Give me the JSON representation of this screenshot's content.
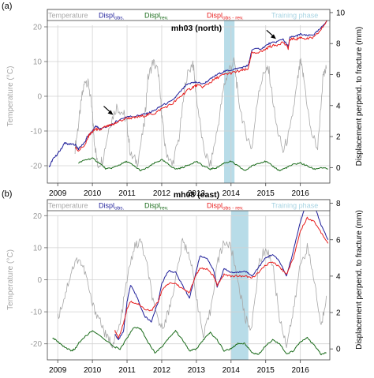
{
  "chart_data": [
    {
      "type": "line",
      "panel_label": "(a)",
      "title": "mh03 (north)",
      "ylabel_left": "Temperature (°C)",
      "ylabel_right": "Displacement perpend. to fracture (mm)",
      "x_ticks": [
        "2009",
        "2010",
        "2011",
        "2012",
        "2013",
        "2014",
        "2015",
        "2016"
      ],
      "xlim": [
        2008.7,
        2016.85
      ],
      "ylim_left": [
        -25,
        25
      ],
      "ylim_right": [
        -1,
        10.2
      ],
      "yticks_left": [
        -20,
        -10,
        0,
        10,
        20
      ],
      "yticks_right": [
        0,
        2,
        4,
        6,
        8,
        10
      ],
      "grid": true,
      "training_phase": [
        2013.8,
        2014.1
      ],
      "arrows": [
        {
          "x": 2010.6,
          "y": 3.4
        },
        {
          "x": 2015.3,
          "y": 8.3
        }
      ],
      "legend": [
        "Temperature",
        "Displ",
        "Displ",
        "Displ",
        "Training phase"
      ],
      "legend_sub": [
        "",
        "obs.",
        "rev.",
        "obs - rev.",
        ""
      ],
      "series": [
        {
          "name": "Temperature",
          "axis": "left",
          "color": "#a8a8a8",
          "x": [
            2009.5,
            2009.6,
            2009.7,
            2009.8,
            2009.9,
            2010.0,
            2010.05,
            2010.15,
            2010.3,
            2010.5,
            2010.7,
            2010.9,
            2011.0,
            2011.1,
            2011.3,
            2011.5,
            2011.6,
            2011.75,
            2011.9,
            2012.0,
            2012.1,
            2012.3,
            2012.5,
            2012.7,
            2012.9,
            2013.0,
            2013.2,
            2013.4,
            2013.6,
            2013.8,
            2013.95,
            2014.1,
            2014.2,
            2014.4,
            2014.6,
            2014.8,
            2015.0,
            2015.1,
            2015.3,
            2015.5,
            2015.7,
            2015.9,
            2016.0,
            2016.1,
            2016.3,
            2016.5,
            2016.65,
            2016.75
          ],
          "y": [
            -15,
            -8,
            0,
            5,
            3,
            -5,
            -12,
            -20,
            -18,
            -8,
            -3,
            -5,
            -8,
            -17,
            -19,
            -8,
            5,
            10,
            7,
            -5,
            -15,
            -20,
            -12,
            5,
            10,
            0,
            -15,
            -20,
            -10,
            3,
            8,
            10,
            0,
            -10,
            -15,
            2,
            8,
            7,
            -8,
            -16,
            -10,
            3,
            10,
            5,
            -10,
            -15,
            5,
            8
          ]
        },
        {
          "name": "Displ obs.",
          "axis": "right",
          "color": "#1f1f9a",
          "x": [
            2008.75,
            2008.85,
            2009.0,
            2009.1,
            2009.2,
            2009.3,
            2009.5,
            2009.6,
            2009.8,
            2009.85,
            2009.95,
            2010.1,
            2010.2,
            2010.35,
            2010.5,
            2010.6,
            2010.7,
            2011.0,
            2011.2,
            2011.4,
            2011.6,
            2011.8,
            2012.0,
            2012.3,
            2012.5,
            2012.7,
            2012.9,
            2013.0,
            2013.2,
            2013.4,
            2013.6,
            2013.8,
            2014.0,
            2014.2,
            2014.4,
            2014.5,
            2014.6,
            2014.9,
            2015.1,
            2015.3,
            2015.5,
            2015.65,
            2015.7,
            2015.9,
            2016.0,
            2016.2,
            2016.4,
            2016.6,
            2016.8
          ],
          "y": [
            0,
            0.5,
            0.9,
            1.2,
            1.6,
            1.5,
            1.5,
            1.2,
            1.7,
            2.0,
            2.2,
            2.7,
            2.5,
            2.6,
            2.7,
            2.8,
            3.0,
            3.3,
            3.3,
            3.4,
            3.5,
            3.7,
            4.0,
            4.3,
            4.8,
            5.3,
            5.5,
            5.5,
            5.4,
            5.7,
            6.0,
            6.2,
            6.3,
            6.4,
            6.5,
            6.6,
            7.6,
            7.7,
            8.0,
            8.1,
            8.3,
            7.8,
            8.4,
            8.5,
            8.6,
            8.5,
            8.6,
            9.0,
            9.6
          ]
        },
        {
          "name": "Displ obs - rev.",
          "axis": "right",
          "color": "#e81e1e",
          "x": [
            2009.5,
            2009.6,
            2009.8,
            2009.9,
            2010.0,
            2010.1,
            2010.2,
            2010.35,
            2010.5,
            2010.6,
            2010.7,
            2011.0,
            2011.2,
            2011.4,
            2011.6,
            2011.8,
            2012.0,
            2012.3,
            2012.5,
            2012.7,
            2012.9,
            2013.0,
            2013.2,
            2013.4,
            2013.6,
            2013.8,
            2014.0,
            2014.2,
            2014.4,
            2014.5,
            2014.6,
            2014.9,
            2015.1,
            2015.3,
            2015.5,
            2015.65,
            2015.7,
            2015.9,
            2016.0,
            2016.2,
            2016.4,
            2016.6,
            2016.8
          ],
          "y": [
            1.3,
            1.1,
            1.5,
            2.1,
            2.3,
            2.5,
            2.4,
            2.6,
            2.7,
            2.8,
            2.9,
            3.2,
            3.2,
            3.3,
            3.4,
            3.5,
            3.8,
            4.1,
            4.5,
            4.9,
            5.2,
            5.3,
            5.2,
            5.5,
            5.8,
            6.0,
            6.1,
            6.2,
            6.3,
            6.4,
            7.4,
            7.5,
            7.8,
            7.9,
            8.1,
            7.7,
            8.3,
            8.3,
            8.4,
            8.3,
            8.4,
            8.9,
            9.6
          ]
        },
        {
          "name": "Displ rev.",
          "axis": "right",
          "color": "#1a6b1a",
          "x": [
            2009.6,
            2009.8,
            2010.0,
            2010.2,
            2010.4,
            2010.6,
            2010.8,
            2011.0,
            2011.2,
            2011.4,
            2011.6,
            2011.8,
            2012.0,
            2012.2,
            2012.4,
            2012.6,
            2012.8,
            2013.0,
            2013.2,
            2013.4,
            2013.6,
            2013.8,
            2014.0,
            2014.2,
            2014.4,
            2014.6,
            2014.8,
            2015.0,
            2015.2,
            2015.4,
            2015.6,
            2015.8,
            2016.0,
            2016.2,
            2016.4,
            2016.6,
            2016.8
          ],
          "y": [
            0.3,
            0.5,
            0.6,
            0.3,
            -0.1,
            0.0,
            0.2,
            0.4,
            0.1,
            -0.2,
            0.0,
            0.3,
            0.5,
            0.2,
            -0.1,
            0.0,
            0.2,
            0.4,
            0.1,
            -0.1,
            0.0,
            0.3,
            0.4,
            0.1,
            -0.2,
            0.1,
            0.3,
            0.4,
            0.1,
            -0.2,
            0.0,
            0.2,
            0.3,
            0.1,
            -0.1,
            0.0,
            -0.1
          ]
        }
      ]
    },
    {
      "type": "line",
      "panel_label": "(b)",
      "title": "mh08 (east)",
      "ylabel_left": "Temperature (°C)",
      "ylabel_right": "Displacement perpend. to fracture (mm)",
      "x_ticks": [
        "2009",
        "2010",
        "2011",
        "2012",
        "2013",
        "2014",
        "2015",
        "2016"
      ],
      "xlim": [
        2008.7,
        2016.85
      ],
      "ylim_left": [
        -25,
        25
      ],
      "ylim_right": [
        -0.6,
        8.2
      ],
      "yticks_left": [
        -20,
        -10,
        0,
        10,
        20
      ],
      "yticks_right": [
        0,
        2,
        4,
        6,
        8
      ],
      "grid": true,
      "training_phase": [
        2014.0,
        2014.5
      ],
      "legend": [
        "Temperature",
        "Displ",
        "Displ",
        "Displ",
        "Training phase"
      ],
      "legend_sub": [
        "",
        "obs.",
        "rev.",
        "obs - rev.",
        ""
      ],
      "series": [
        {
          "name": "Temperature",
          "axis": "left",
          "color": "#a8a8a8",
          "x": [
            2009.0,
            2009.2,
            2009.4,
            2009.6,
            2009.8,
            2010.0,
            2010.2,
            2010.4,
            2010.6,
            2010.8,
            2011.0,
            2011.2,
            2011.4,
            2011.6,
            2011.8,
            2012.0,
            2012.2,
            2012.4,
            2012.6,
            2012.8,
            2013.0,
            2013.2,
            2013.4,
            2013.6,
            2013.8,
            2014.0,
            2014.2,
            2014.4,
            2014.6,
            2014.8,
            2015.0,
            2015.2,
            2015.4,
            2015.6,
            2015.8,
            2016.0,
            2016.2,
            2016.4,
            2016.6,
            2016.75
          ],
          "y": [
            -12,
            -5,
            3,
            7,
            2,
            -8,
            -12,
            -18,
            -20,
            -14,
            0,
            10,
            12,
            3,
            -10,
            -15,
            -10,
            0,
            12,
            8,
            -5,
            -18,
            -10,
            5,
            12,
            10,
            0,
            -12,
            -15,
            5,
            10,
            5,
            -12,
            -20,
            -10,
            5,
            10,
            0,
            -15,
            -5
          ]
        },
        {
          "name": "Displ obs.",
          "axis": "right",
          "color": "#1f1f9a",
          "x": [
            2010.65,
            2010.75,
            2010.9,
            2011.0,
            2011.1,
            2011.3,
            2011.5,
            2011.7,
            2011.9,
            2012.0,
            2012.2,
            2012.4,
            2012.6,
            2012.8,
            2013.0,
            2013.1,
            2013.3,
            2013.5,
            2013.6,
            2013.8,
            2014.0,
            2014.2,
            2014.4,
            2014.6,
            2014.8,
            2015.0,
            2015.2,
            2015.4,
            2015.6,
            2015.8,
            2016.0,
            2016.2,
            2016.4,
            2016.6,
            2016.8
          ],
          "y": [
            0.8,
            0.5,
            1.0,
            2.6,
            3.5,
            2.8,
            1.8,
            1.5,
            2.6,
            3.6,
            4.3,
            4.2,
            3.5,
            2.8,
            4.3,
            5.1,
            5.0,
            4.3,
            3.4,
            4.4,
            4.2,
            4.2,
            4.3,
            4.0,
            4.5,
            5.0,
            5.2,
            4.8,
            4.0,
            5.4,
            7.0,
            8.1,
            7.9,
            6.8,
            6.0
          ]
        },
        {
          "name": "Displ obs - rev.",
          "axis": "right",
          "color": "#e81e1e",
          "x": [
            2010.65,
            2010.75,
            2010.9,
            2011.0,
            2011.1,
            2011.3,
            2011.5,
            2011.7,
            2011.9,
            2012.0,
            2012.2,
            2012.4,
            2012.6,
            2012.8,
            2013.0,
            2013.1,
            2013.3,
            2013.5,
            2013.6,
            2013.8,
            2014.0,
            2014.2,
            2014.4,
            2014.6,
            2014.8,
            2015.0,
            2015.2,
            2015.4,
            2015.6,
            2015.8,
            2016.0,
            2016.2,
            2016.4,
            2016.6,
            2016.8
          ],
          "y": [
            1.0,
            0.6,
            1.4,
            2.2,
            2.6,
            2.5,
            2.2,
            2.1,
            2.6,
            3.2,
            3.6,
            3.6,
            3.3,
            3.1,
            4.1,
            4.4,
            4.4,
            4.0,
            3.5,
            4.1,
            4.0,
            4.0,
            4.0,
            3.9,
            4.2,
            4.6,
            4.8,
            4.5,
            4.1,
            5.0,
            6.5,
            7.2,
            7.0,
            6.4,
            5.8
          ]
        },
        {
          "name": "Displ rev.",
          "axis": "right",
          "color": "#1a6b1a",
          "x": [
            2008.85,
            2009.0,
            2009.2,
            2009.4,
            2009.5,
            2009.6,
            2009.8,
            2010.0,
            2010.65,
            2010.8,
            2011.0,
            2011.2,
            2011.4,
            2011.6,
            2011.8,
            2012.0,
            2012.2,
            2012.4,
            2012.6,
            2012.8,
            2013.0,
            2013.2,
            2013.4,
            2013.6,
            2013.8,
            2014.0,
            2014.2,
            2014.4,
            2014.6,
            2014.8,
            2015.0,
            2015.2,
            2015.4,
            2015.6,
            2015.8,
            2016.0,
            2016.2,
            2016.4,
            2016.6,
            2016.75
          ],
          "y": [
            0.6,
            0.4,
            0.1,
            -0.1,
            0.0,
            0.3,
            0.7,
            1.0,
            0.1,
            0.0,
            0.6,
            1.2,
            1.1,
            0.4,
            -0.2,
            0.1,
            0.6,
            1.0,
            0.5,
            -0.1,
            0.0,
            0.5,
            0.9,
            0.5,
            -0.1,
            0.0,
            0.3,
            0.3,
            -0.2,
            -0.3,
            0.2,
            0.5,
            0.3,
            -0.3,
            -0.1,
            0.4,
            0.6,
            0.2,
            -0.3,
            -0.2
          ]
        }
      ]
    }
  ]
}
